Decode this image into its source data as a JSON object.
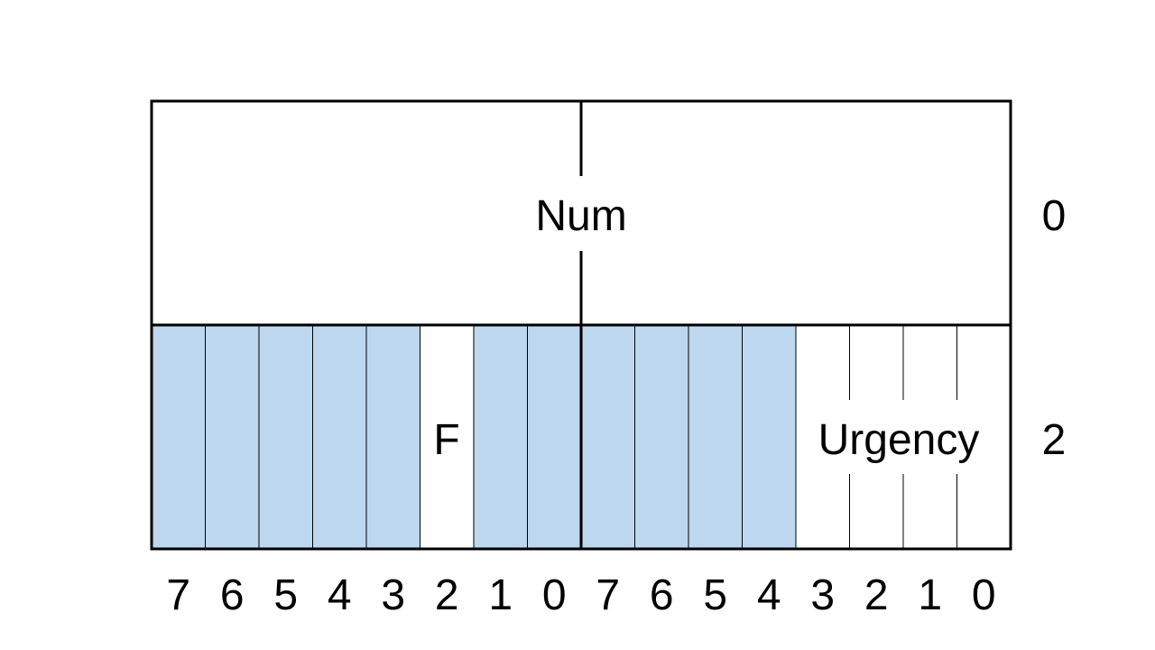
{
  "colors": {
    "reserved_fill": "#bdd7ee",
    "line": "#000000",
    "background": "#ffffff"
  },
  "fields": {
    "num": "Num",
    "flag": "F",
    "urgency": "Urgency"
  },
  "offsets": [
    "0",
    "2"
  ],
  "bit_labels": [
    "7",
    "6",
    "5",
    "4",
    "3",
    "2",
    "1",
    "0",
    "7",
    "6",
    "5",
    "4",
    "3",
    "2",
    "1",
    "0"
  ],
  "reserved_bits": [
    true,
    true,
    true,
    true,
    true,
    false,
    true,
    true,
    true,
    true,
    true,
    true,
    false,
    false,
    false,
    false
  ]
}
